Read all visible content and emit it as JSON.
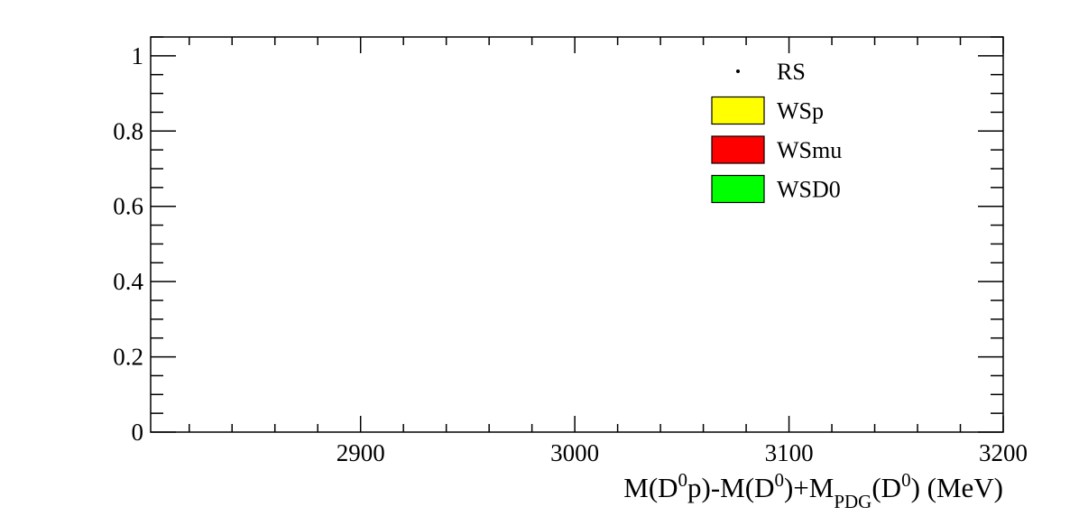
{
  "chart_data": {
    "type": "histogram",
    "title": "",
    "xlabel": {
      "parts": [
        {
          "text": "M(D",
          "shift": "none"
        },
        {
          "text": "0",
          "shift": "super"
        },
        {
          "text": "p)-M(D",
          "shift": "none"
        },
        {
          "text": "0",
          "shift": "super"
        },
        {
          "text": ")+M",
          "shift": "none"
        },
        {
          "text": "PDG",
          "shift": "sub"
        },
        {
          "text": "(D",
          "shift": "none"
        },
        {
          "text": "0",
          "shift": "super"
        },
        {
          "text": ") (MeV)",
          "shift": "none"
        }
      ]
    },
    "ylabel": "",
    "xlim": [
      2802,
      3200
    ],
    "ylim": [
      0,
      1.05
    ],
    "x_major_ticks": [
      {
        "value": 2900,
        "label": "2900"
      },
      {
        "value": 3000,
        "label": "3000"
      },
      {
        "value": 3100,
        "label": "3100"
      },
      {
        "value": 3200,
        "label": "3200"
      }
    ],
    "x_minor_step": 20,
    "y_major_ticks": [
      {
        "value": 0,
        "label": "0"
      },
      {
        "value": 0.2,
        "label": "0.2"
      },
      {
        "value": 0.4,
        "label": "0.4"
      },
      {
        "value": 0.6,
        "label": "0.6"
      },
      {
        "value": 0.8,
        "label": "0.8"
      },
      {
        "value": 1,
        "label": "1"
      }
    ],
    "y_minor_step": 0.05,
    "grid": false,
    "legend_position": "top-right",
    "legend": [
      {
        "label": "RS",
        "style": "marker",
        "color": "#000000"
      },
      {
        "label": "WSp",
        "style": "box",
        "color": "#ffff00"
      },
      {
        "label": "WSmu",
        "style": "box",
        "color": "#ff0000"
      },
      {
        "label": "WSD0",
        "style": "box",
        "color": "#00ff00"
      }
    ],
    "series": []
  }
}
